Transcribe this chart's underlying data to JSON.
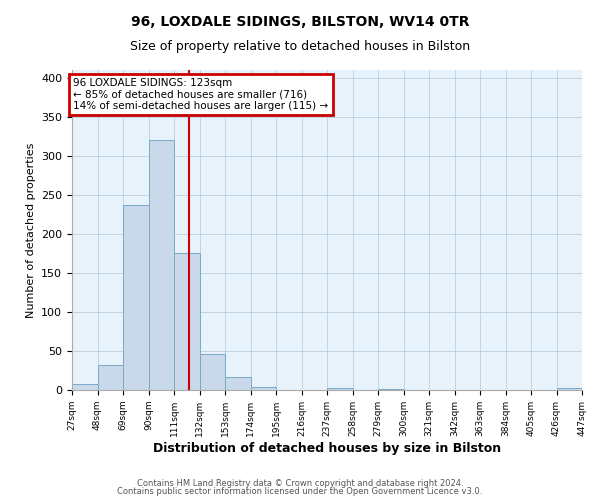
{
  "title": "96, LOXDALE SIDINGS, BILSTON, WV14 0TR",
  "subtitle": "Size of property relative to detached houses in Bilston",
  "xlabel": "Distribution of detached houses by size in Bilston",
  "ylabel": "Number of detached properties",
  "bar_color": "#c9d9ea",
  "bar_edge_color": "#7aaac8",
  "plot_bg_color": "#e8f2fb",
  "fig_bg_color": "#ffffff",
  "grid_color": "#b8cfe0",
  "vline_x": 123,
  "vline_color": "#cc0000",
  "annotation_text": "96 LOXDALE SIDINGS: 123sqm\n← 85% of detached houses are smaller (716)\n14% of semi-detached houses are larger (115) →",
  "annotation_box_edgecolor": "#cc0000",
  "ylim": [
    0,
    410
  ],
  "bin_edges": [
    27,
    48,
    69,
    90,
    111,
    132,
    153,
    174,
    195,
    216,
    237,
    258,
    279,
    300,
    321,
    342,
    363,
    384,
    405,
    426,
    447
  ],
  "bin_counts": [
    8,
    32,
    237,
    320,
    175,
    46,
    17,
    4,
    0,
    0,
    3,
    0,
    1,
    0,
    0,
    0,
    0,
    0,
    0,
    2
  ],
  "footer_line1": "Contains HM Land Registry data © Crown copyright and database right 2024.",
  "footer_line2": "Contains public sector information licensed under the Open Government Licence v3.0."
}
